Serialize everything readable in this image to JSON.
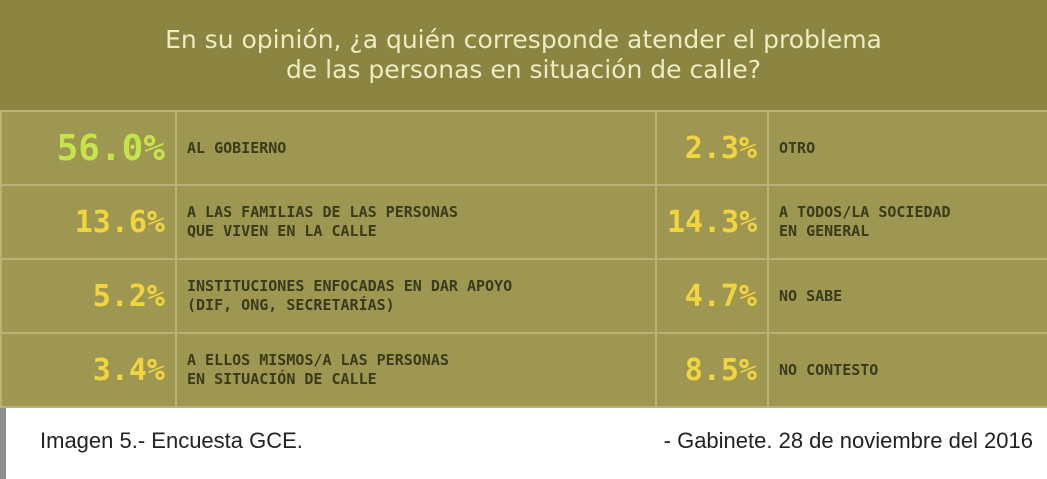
{
  "header": {
    "title": [
      "En su opinión, ¿a quién corresponde atender el problema",
      "de las personas en situación de calle?"
    ]
  },
  "table": {
    "rows": [
      [
        "56.0%",
        "AL GOBIERNO",
        "2.3%",
        "OTRO"
      ],
      [
        "13.6%",
        "A LAS FAMILIAS DE LAS PERSONAS\nQUE VIVEN EN LA CALLE",
        "14.3%",
        "A TODOS/LA SOCIEDAD\nEN GENERAL"
      ],
      [
        "5.2%",
        "INSTITUCIONES ENFOCADAS EN DAR APOYO\n(DIF, ONG, SECRETARÍAS)",
        "4.7%",
        "NO SABE"
      ],
      [
        "3.4%",
        "A ELLOS MISMOS/A LAS PERSONAS\nEN SITUACIÓN DE CALLE",
        "8.5%",
        "NO CONTESTO"
      ]
    ]
  },
  "caption": {
    "left": "Imagen 5.- Encuesta GCE.",
    "right": "- Gabinete. 28 de noviembre del 2016"
  }
}
